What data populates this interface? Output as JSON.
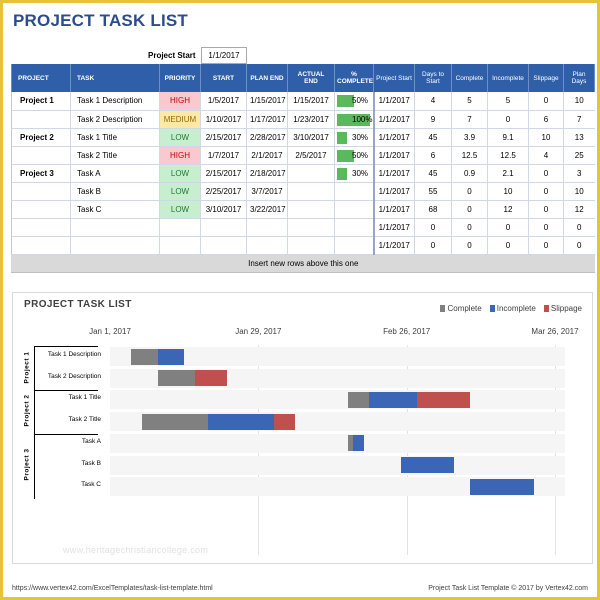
{
  "title": "PROJECT TASK LIST",
  "project_start": {
    "label": "Project Start",
    "value": "1/1/2017"
  },
  "table": {
    "headers": {
      "project": "PROJECT",
      "task": "TASK",
      "priority": "PRIORITY",
      "start": "START",
      "plan_end": "PLAN END",
      "actual_end": "ACTUAL END",
      "complete_pct_line1": "%",
      "complete_pct_line2": "COMPLETE",
      "project_start": "Project Start",
      "days_to_start_line1": "Days to",
      "days_to_start_line2": "Start",
      "complete": "Complete",
      "incomplete": "Incomplete",
      "slippage": "Slippage",
      "plan_days_line1": "Plan",
      "plan_days_line2": "Days"
    },
    "rows": [
      {
        "project": "Project 1",
        "task": "Task 1 Description",
        "priority": "HIGH",
        "start": "1/5/2017",
        "plan_end": "1/15/2017",
        "actual_end": "1/15/2017",
        "pct": "50%",
        "pct_value": 50,
        "pstart": "1/1/2017",
        "days_to_start": "4",
        "complete": "5",
        "incomplete": "5",
        "slippage": "0",
        "plan_days": "10"
      },
      {
        "project": "",
        "task": "Task 2 Description",
        "priority": "MEDIUM",
        "start": "1/10/2017",
        "plan_end": "1/17/2017",
        "actual_end": "1/23/2017",
        "pct": "100%",
        "pct_value": 100,
        "pstart": "1/1/2017",
        "days_to_start": "9",
        "complete": "7",
        "incomplete": "0",
        "slippage": "6",
        "plan_days": "7"
      },
      {
        "project": "Project 2",
        "task": "Task 1 Title",
        "priority": "LOW",
        "start": "2/15/2017",
        "plan_end": "2/28/2017",
        "actual_end": "3/10/2017",
        "pct": "30%",
        "pct_value": 30,
        "pstart": "1/1/2017",
        "days_to_start": "45",
        "complete": "3.9",
        "incomplete": "9.1",
        "slippage": "10",
        "plan_days": "13"
      },
      {
        "project": "",
        "task": "Task 2 Title",
        "priority": "HIGH",
        "start": "1/7/2017",
        "plan_end": "2/1/2017",
        "actual_end": "2/5/2017",
        "pct": "50%",
        "pct_value": 50,
        "pstart": "1/1/2017",
        "days_to_start": "6",
        "complete": "12.5",
        "incomplete": "12.5",
        "slippage": "4",
        "plan_days": "25"
      },
      {
        "project": "Project 3",
        "task": "Task A",
        "priority": "LOW",
        "start": "2/15/2017",
        "plan_end": "2/18/2017",
        "actual_end": "",
        "pct": "30%",
        "pct_value": 30,
        "pstart": "1/1/2017",
        "days_to_start": "45",
        "complete": "0.9",
        "incomplete": "2.1",
        "slippage": "0",
        "plan_days": "3"
      },
      {
        "project": "",
        "task": "Task B",
        "priority": "LOW",
        "start": "2/25/2017",
        "plan_end": "3/7/2017",
        "actual_end": "",
        "pct": "",
        "pct_value": 0,
        "pstart": "1/1/2017",
        "days_to_start": "55",
        "complete": "0",
        "incomplete": "10",
        "slippage": "0",
        "plan_days": "10"
      },
      {
        "project": "",
        "task": "Task C",
        "priority": "LOW",
        "start": "3/10/2017",
        "plan_end": "3/22/2017",
        "actual_end": "",
        "pct": "",
        "pct_value": 0,
        "pstart": "1/1/2017",
        "days_to_start": "68",
        "complete": "0",
        "incomplete": "12",
        "slippage": "0",
        "plan_days": "12"
      },
      {
        "project": "",
        "task": "",
        "priority": "",
        "start": "",
        "plan_end": "",
        "actual_end": "",
        "pct": "",
        "pct_value": 0,
        "pstart": "1/1/2017",
        "days_to_start": "0",
        "complete": "0",
        "incomplete": "0",
        "slippage": "0",
        "plan_days": "0"
      },
      {
        "project": "",
        "task": "",
        "priority": "",
        "start": "",
        "plan_end": "",
        "actual_end": "",
        "pct": "",
        "pct_value": 0,
        "pstart": "1/1/2017",
        "days_to_start": "0",
        "complete": "0",
        "incomplete": "0",
        "slippage": "0",
        "plan_days": "0"
      }
    ],
    "footer_note": "Insert new rows above this one"
  },
  "chart_data": {
    "type": "bar",
    "orientation": "horizontal-stacked-gantt",
    "title": "PROJECT TASK LIST",
    "x_axis_ticks": [
      "Jan 1, 2017",
      "Jan 29, 2017",
      "Feb 26, 2017",
      "Mar 26, 2017"
    ],
    "x_axis_tick_days": [
      0,
      28,
      56,
      84
    ],
    "x_range_days": [
      0,
      84
    ],
    "legend_position": "top-right",
    "series_colors": {
      "complete": "#808080",
      "incomplete": "#3b66b5",
      "slippage": "#c0504d"
    },
    "legend": [
      "Complete",
      "Incomplete",
      "Slippage"
    ],
    "groups": [
      {
        "project": "Project 1",
        "tasks": [
          0,
          1
        ]
      },
      {
        "project": "Project 2",
        "tasks": [
          2,
          3
        ]
      },
      {
        "project": "Project 3",
        "tasks": [
          4,
          5,
          6
        ]
      }
    ],
    "categories": [
      "Task 1 Description",
      "Task 2 Description",
      "Task 1 Title",
      "Task 2 Title",
      "Task A",
      "Task B",
      "Task C"
    ],
    "days_to_start": [
      4,
      9,
      45,
      6,
      45,
      55,
      68
    ],
    "series": [
      {
        "name": "Complete",
        "values": [
          5,
          7,
          3.9,
          12.5,
          0.9,
          0,
          0
        ]
      },
      {
        "name": "Incomplete",
        "values": [
          5,
          0,
          9.1,
          12.5,
          2.1,
          10,
          12
        ]
      },
      {
        "name": "Slippage",
        "values": [
          0,
          6,
          10,
          4,
          0,
          0,
          0
        ]
      }
    ]
  },
  "watermark": "www.heritagechristiancollege.com",
  "footer": {
    "left": "https://www.vertex42.com/ExcelTemplates/task-list-template.html",
    "right": "Project Task List Template © 2017 by Vertex42.com"
  }
}
